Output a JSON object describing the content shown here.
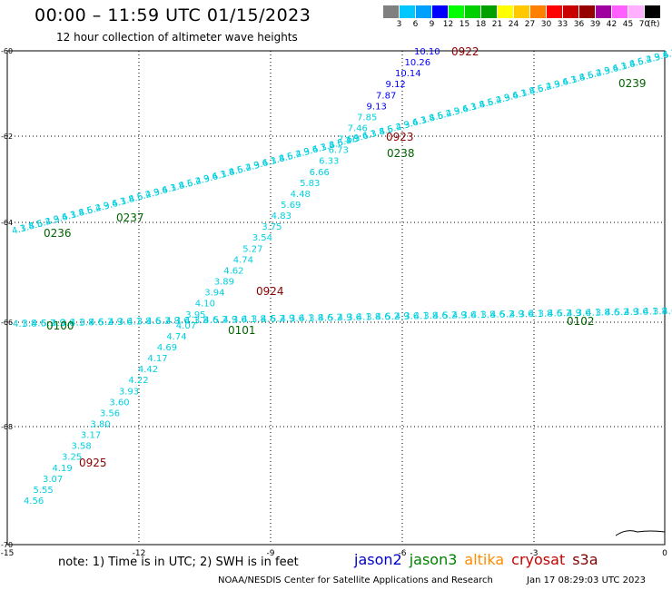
{
  "header": {
    "title": "00:00 – 11:59 UTC 01/15/2023",
    "subtitle": "12 hour collection of altimeter wave heights"
  },
  "legend": {
    "colors": [
      "#808080",
      "#00c8ff",
      "#00a0ff",
      "#0000ff",
      "#00ff00",
      "#00d000",
      "#00a000",
      "#ffff00",
      "#ffc800",
      "#ff8000",
      "#ff0000",
      "#c80000",
      "#960000",
      "#a000a0",
      "#ff60ff",
      "#ffb0ff",
      "#000000"
    ],
    "labels": [
      "3",
      "6",
      "9",
      "12",
      "15",
      "18",
      "21",
      "24",
      "27",
      "30",
      "33",
      "36",
      "39",
      "42",
      "45",
      "70"
    ],
    "unit": "(ft)"
  },
  "axes": {
    "x_ticks": [
      "-15",
      "-12",
      "-9",
      "-6",
      "-3",
      "0"
    ],
    "y_ticks": [
      "-60",
      "-62",
      "-64",
      "-66",
      "-68",
      "-70"
    ]
  },
  "track_labels": {
    "t0922": "0922",
    "t0923": "0923",
    "t0924": "0924",
    "t0925": "0925",
    "t0238": "0238",
    "t0237": "0237",
    "t0236": "0236",
    "t0239": "0239",
    "t0100": "0100",
    "t0101": "0101",
    "t0102": "0102"
  },
  "track_values": {
    "diag_top": [
      "10.10",
      "10.26",
      "10.14",
      "9.12",
      "7.87",
      "9.13",
      "7.85",
      "7.46",
      "7.66",
      "6.73",
      "6.33",
      "6.66",
      "5.83",
      "4.48",
      "5.69",
      "4.83",
      "3.75",
      "3.54",
      "5.27",
      "4.74",
      "4.62",
      "3.89",
      "3.94",
      "4.10",
      "3.95",
      "4.07",
      "4.74",
      "4.69",
      "4.17",
      "4.42",
      "4.22",
      "3.93",
      "3.60",
      "3.56",
      "3.80",
      "3.17",
      "3.58",
      "3.25",
      "4.19",
      "3.07",
      "5.55",
      "4.56"
    ]
  },
  "footer": {
    "note": "note: 1) Time is in UTC; 2) SWH is in feet",
    "satellites": [
      "jason2",
      "jason3",
      "altika",
      "cryosat",
      "s3a"
    ],
    "sat_colors": [
      "#0000c8",
      "#008000",
      "#ff8c00",
      "#c80000",
      "#800000"
    ],
    "credit": "NOAA/NESDIS Center for Satellite Applications and Research",
    "generated": "Jan 17 08:29:03 UTC 2023"
  }
}
